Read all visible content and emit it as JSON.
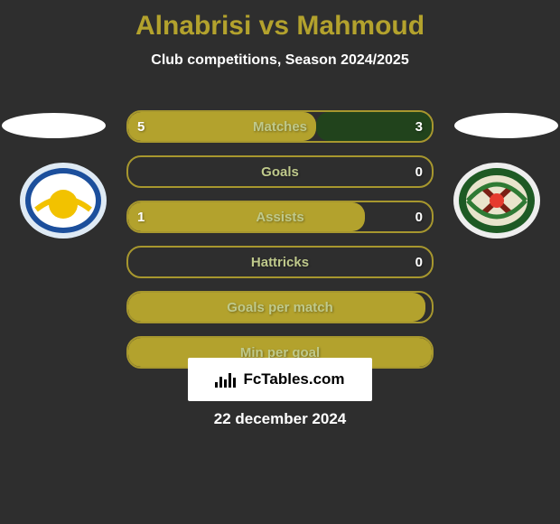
{
  "header": {
    "player1_name": "Alnabrisi",
    "player2_name": "Mahmoud",
    "title_color": "#b3a22d",
    "subtitle": "Club competitions, Season 2024/2025"
  },
  "colors": {
    "player1": "#b3a22d",
    "player2": "#21431c",
    "bar_border": "#a7972e",
    "bar_label": "#bfc98b",
    "background": "#2e2e2e"
  },
  "bars": [
    {
      "label": "Matches",
      "left_val": "5",
      "right_val": "3",
      "left_pct": 62,
      "right_pct": 38
    },
    {
      "label": "Goals",
      "left_val": "",
      "right_val": "0",
      "left_pct": 0,
      "right_pct": 0
    },
    {
      "label": "Assists",
      "left_val": "1",
      "right_val": "0",
      "left_pct": 78,
      "right_pct": 0
    },
    {
      "label": "Hattricks",
      "left_val": "",
      "right_val": "0",
      "left_pct": 0,
      "right_pct": 0
    },
    {
      "label": "Goals per match",
      "left_val": "",
      "right_val": "",
      "left_pct": 98,
      "right_pct": 0
    },
    {
      "label": "Min per goal",
      "left_val": "",
      "right_val": "",
      "left_pct": 100,
      "right_pct": 0
    }
  ],
  "watermark": {
    "text": "FcTables.com"
  },
  "date": "22 december 2024"
}
